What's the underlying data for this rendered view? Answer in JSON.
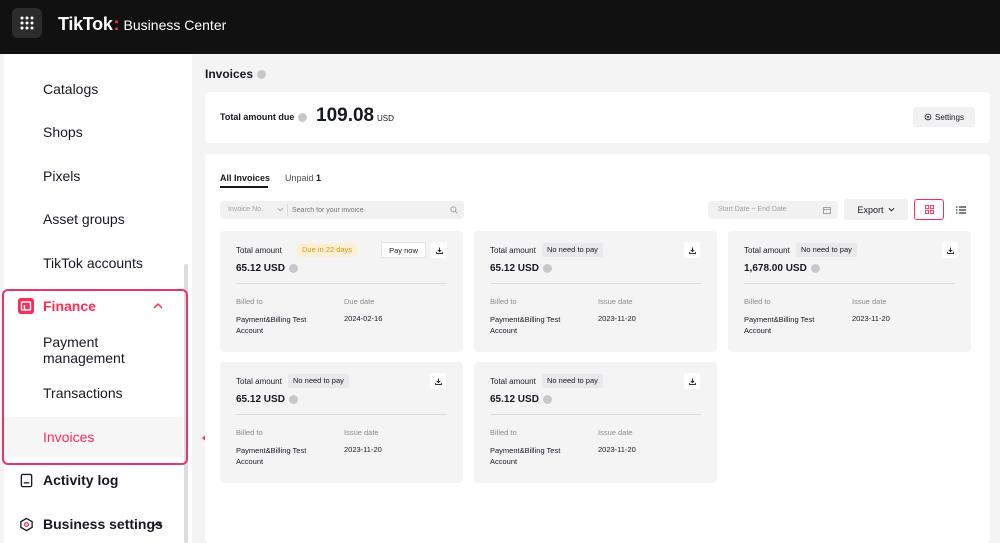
{
  "header": {
    "logo": "TikTok",
    "separator": ":",
    "product": "Business Center"
  },
  "sidebar": {
    "items": [
      {
        "label": "Catalogs"
      },
      {
        "label": "Shops"
      },
      {
        "label": "Pixels"
      },
      {
        "label": "Asset groups"
      },
      {
        "label": "TikTok accounts"
      },
      {
        "label": "Finance"
      },
      {
        "label": "Payment management"
      },
      {
        "label": "Transactions"
      },
      {
        "label": "Invoices"
      },
      {
        "label": "Activity log"
      },
      {
        "label": "Business settings"
      }
    ]
  },
  "main": {
    "title": "Invoices",
    "total_due_label": "Total amount due",
    "total_due_amount": "109.08",
    "total_due_currency": "USD",
    "settings_label": "Settings",
    "tabs": [
      {
        "label": "All Invoices"
      },
      {
        "label": "Unpaid",
        "count": "1"
      }
    ],
    "search": {
      "filter_label": "Invoice No.",
      "placeholder": "Search for your invoice"
    },
    "date_range_placeholder": "Start Date ~ End Date",
    "export_label": "Export"
  },
  "invoices": [
    {
      "total_label": "Total amount",
      "status": "Due in 22 days",
      "pay_label": "Pay now",
      "amount": "65.12 USD",
      "billed_label": "Billed to",
      "billed_value": "Payment&Billing Test Account",
      "date_label": "Due date",
      "date_value": "2024-02-16"
    },
    {
      "total_label": "Total amount",
      "status": "No need to pay",
      "amount": "65.12 USD",
      "billed_label": "Billed to",
      "billed_value": "Payment&Billing Test Account",
      "date_label": "Issue date",
      "date_value": "2023-11-20"
    },
    {
      "total_label": "Total amount",
      "status": "No need to pay",
      "amount": "1,678.00 USD",
      "billed_label": "Billed to",
      "billed_value": "Payment&Billing Test Account",
      "date_label": "Issue date",
      "date_value": "2023-11-20"
    },
    {
      "total_label": "Total amount",
      "status": "No need to pay",
      "amount": "65.12 USD",
      "billed_label": "Billed to",
      "billed_value": "Payment&Billing Test Account",
      "date_label": "Issue date",
      "date_value": "2023-11-20"
    },
    {
      "total_label": "Total amount",
      "status": "No need to pay",
      "amount": "65.12 USD",
      "billed_label": "Billed to",
      "billed_value": "Payment&Billing Test Account",
      "date_label": "Issue date",
      "date_value": "2023-11-20"
    }
  ],
  "colors": {
    "accent": "#fe2c55",
    "highlight_outline": "#e8356a",
    "topbar": "#111111",
    "warning_text": "#d7940e"
  }
}
